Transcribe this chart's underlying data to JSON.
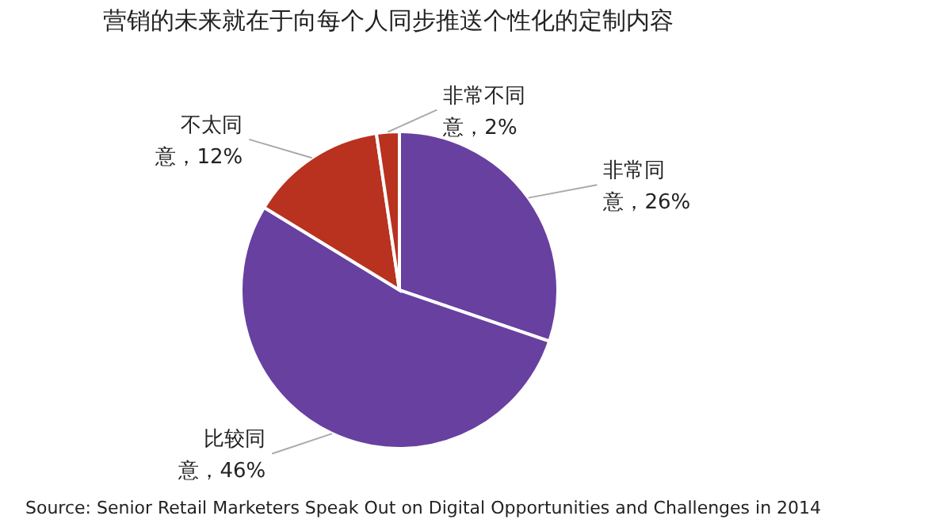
{
  "chart_data": {
    "type": "pie",
    "title": "营销的未来就在于向每个人同步推送个性化的定制内容",
    "categories": [
      "非常同意",
      "比较同意",
      "不太同意",
      "非常不同意"
    ],
    "values": [
      26,
      46,
      12,
      2
    ],
    "value_labels": [
      "，26%",
      "，46%",
      "，12%",
      "，2%"
    ],
    "colors": [
      "#6840a0",
      "#6840a0",
      "#b8321f",
      "#b8321f"
    ],
    "legend": false,
    "annotations": [
      "Source: Senior Retail Marketers Speak Out on Digital Opportunities and Challenges in 2014"
    ]
  }
}
